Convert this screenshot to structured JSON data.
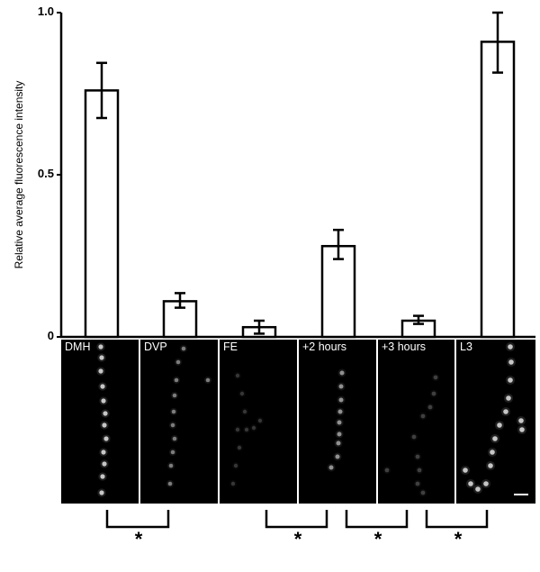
{
  "chart_data": {
    "type": "bar",
    "title": "",
    "xlabel": "",
    "ylabel": "Relative average fluorescence intensity",
    "ylim": [
      0,
      1.0
    ],
    "yticks": [
      0,
      0.5,
      1.0
    ],
    "ytick_labels": [
      "0",
      "0.5",
      "1.0"
    ],
    "grid": false,
    "legend": null,
    "categories": [
      "DMH",
      "DVP",
      "FE",
      "+2 hours",
      "+3 hours",
      "L3"
    ],
    "values": [
      0.76,
      0.11,
      0.03,
      0.28,
      0.05,
      0.91
    ],
    "error_low": [
      0.675,
      0.09,
      0.01,
      0.24,
      0.04,
      0.815
    ],
    "error_high": [
      0.845,
      0.135,
      0.05,
      0.33,
      0.065,
      1.0
    ],
    "bar_fill": "#ffffff",
    "bar_edge": "#000000",
    "significance": [
      {
        "pair": [
          "DMH",
          "DVP"
        ],
        "label": "*"
      },
      {
        "pair": [
          "FE",
          "+2 hours"
        ],
        "label": "*"
      },
      {
        "pair": [
          "+2 hours",
          "+3 hours"
        ],
        "label": "*"
      },
      {
        "pair": [
          "+3 hours",
          "L3"
        ],
        "label": "*"
      }
    ]
  },
  "axis": {
    "y_title": "Relative average fluorescence intensity",
    "tick_0": "0",
    "tick_05": "0.5",
    "tick_10": "1.0"
  },
  "panels": [
    {
      "label": "DMH"
    },
    {
      "label": "DVP"
    },
    {
      "label": "FE"
    },
    {
      "label": "+2 hours"
    },
    {
      "label": "+3 hours"
    },
    {
      "label": "L3"
    }
  ],
  "significance_marks": [
    "*",
    "*",
    "*",
    "*"
  ]
}
